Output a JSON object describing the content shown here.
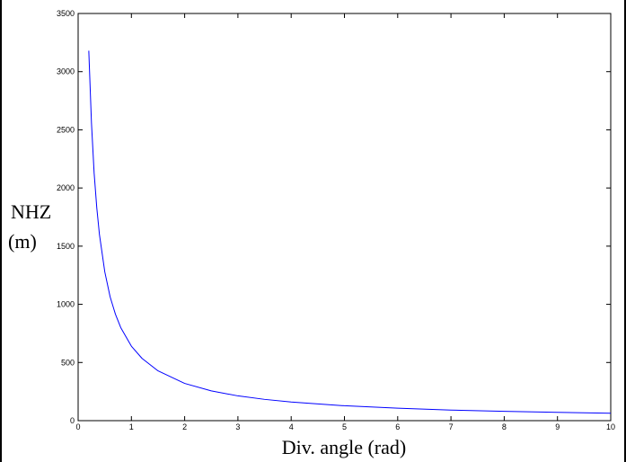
{
  "chart_data": {
    "type": "line",
    "xlabel": "Div. angle (rad)",
    "ylabel_lines": [
      "NHZ",
      "(m)"
    ],
    "xlim": [
      0,
      10
    ],
    "ylim": [
      0,
      3500
    ],
    "x_ticks": [
      0,
      1,
      2,
      3,
      4,
      5,
      6,
      7,
      8,
      9,
      10
    ],
    "x_tick_labels": [
      "0",
      "1",
      "2",
      "3",
      "4",
      "5",
      "6",
      "7",
      "8",
      "9",
      "10"
    ],
    "y_ticks": [
      0,
      500,
      1000,
      1500,
      2000,
      2500,
      3000,
      3500
    ],
    "y_tick_labels": [
      "0",
      "500",
      "1000",
      "1500",
      "2000",
      "2500",
      "3000",
      "3500"
    ],
    "grid": false,
    "series": [
      {
        "color": "#0000ff",
        "x": [
          0.2,
          0.25,
          0.3,
          0.35,
          0.4,
          0.5,
          0.6,
          0.7,
          0.8,
          1.0,
          1.2,
          1.5,
          2.0,
          2.5,
          3.0,
          3.5,
          4.0,
          5.0,
          6.0,
          7.0,
          8.0,
          9.0,
          10.0
        ],
        "y": [
          3180,
          2560,
          2130,
          1830,
          1600,
          1280,
          1065,
          915,
          800,
          640,
          535,
          428,
          320,
          256,
          213,
          183,
          160,
          128,
          107,
          91,
          80,
          71,
          64
        ]
      }
    ]
  }
}
